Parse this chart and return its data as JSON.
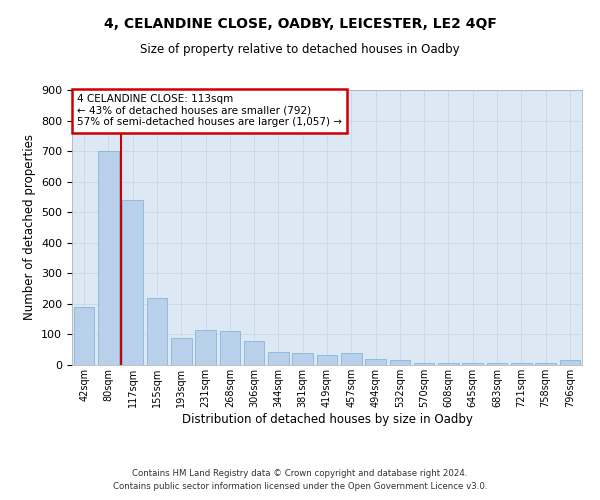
{
  "title1": "4, CELANDINE CLOSE, OADBY, LEICESTER, LE2 4QF",
  "title2": "Size of property relative to detached houses in Oadby",
  "xlabel": "Distribution of detached houses by size in Oadby",
  "ylabel": "Number of detached properties",
  "footer1": "Contains HM Land Registry data © Crown copyright and database right 2024.",
  "footer2": "Contains public sector information licensed under the Open Government Licence v3.0.",
  "annotation_line1": "4 CELANDINE CLOSE: 113sqm",
  "annotation_line2": "← 43% of detached houses are smaller (792)",
  "annotation_line3": "57% of semi-detached houses are larger (1,057) →",
  "bar_categories": [
    "42sqm",
    "80sqm",
    "117sqm",
    "155sqm",
    "193sqm",
    "231sqm",
    "268sqm",
    "306sqm",
    "344sqm",
    "381sqm",
    "419sqm",
    "457sqm",
    "494sqm",
    "532sqm",
    "570sqm",
    "608sqm",
    "645sqm",
    "683sqm",
    "721sqm",
    "758sqm",
    "796sqm"
  ],
  "bar_values": [
    190,
    700,
    540,
    220,
    90,
    115,
    110,
    80,
    42,
    38,
    32,
    38,
    20,
    18,
    5,
    5,
    5,
    5,
    5,
    5,
    18
  ],
  "bar_color": "#b8d0ea",
  "bar_edge_color": "#7aafd4",
  "vline_color": "#cc0000",
  "annotation_box_color": "#cc0000",
  "grid_color": "#c8d8e8",
  "background_color": "#dce9f5",
  "ylim": [
    0,
    900
  ],
  "yticks": [
    0,
    100,
    200,
    300,
    400,
    500,
    600,
    700,
    800,
    900
  ],
  "vline_x": 1.5
}
